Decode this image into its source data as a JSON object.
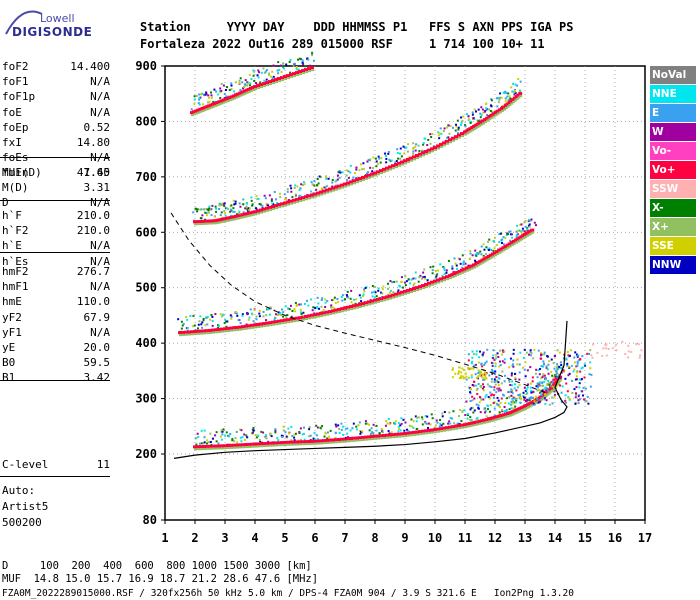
{
  "logo": {
    "top": "Lowell",
    "bottom": "DIGISONDE"
  },
  "header": {
    "line1": "Station     YYYY DAY    DDD HHMMSS P1   FFS S AXN PPS IGA PS",
    "line2": "Fortaleza 2022 Out16 289 015000 RSF     1 714 100 10+ 11"
  },
  "params": {
    "group1": [
      {
        "name": "foF2",
        "value": "14.400"
      },
      {
        "name": "foF1",
        "value": "N/A"
      },
      {
        "name": "foF1p",
        "value": "N/A"
      },
      {
        "name": "foE",
        "value": "N/A"
      },
      {
        "name": "foEp",
        "value": "0.52"
      },
      {
        "name": "fxI",
        "value": "14.80"
      },
      {
        "name": "foEs",
        "value": "N/A"
      },
      {
        "name": "fmin",
        "value": "1.45"
      }
    ],
    "group2": [
      {
        "name": "MUF(D)",
        "value": "47.60"
      },
      {
        "name": "M(D)",
        "value": "3.31"
      },
      {
        "name": "D",
        "value": "N/A"
      }
    ],
    "group3": [
      {
        "name": "h`F",
        "value": "210.0"
      },
      {
        "name": "h`F2",
        "value": "210.0"
      },
      {
        "name": "h`E",
        "value": "N/A"
      },
      {
        "name": "h`Es",
        "value": "N/A"
      }
    ],
    "group4": [
      {
        "name": "hmF2",
        "value": "276.7"
      },
      {
        "name": "hmF1",
        "value": "N/A"
      },
      {
        "name": "hmE",
        "value": "110.0"
      },
      {
        "name": "yF2",
        "value": "67.9"
      },
      {
        "name": "yF1",
        "value": "N/A"
      },
      {
        "name": "yE",
        "value": "20.0"
      },
      {
        "name": "B0",
        "value": "59.5"
      },
      {
        "name": "B1",
        "value": "3.42"
      }
    ],
    "group5": [
      {
        "name": "C-level",
        "value": "11"
      }
    ]
  },
  "auto": {
    "line1": "Auto:",
    "line2": "Artist5",
    "line3": "500200"
  },
  "legend": [
    {
      "label": "NoVal",
      "color": "#808080",
      "text_color": "#ffffff"
    },
    {
      "label": "NNE",
      "color": "#00e5ee",
      "text_color": "#ffffff"
    },
    {
      "label": "E",
      "color": "#3aa0f0",
      "text_color": "#ffffff"
    },
    {
      "label": "W",
      "color": "#a000a0",
      "text_color": "#ffffff"
    },
    {
      "label": "Vo-",
      "color": "#ff40c0",
      "text_color": "#ffffff"
    },
    {
      "label": "Vo+",
      "color": "#ff0040",
      "text_color": "#ffffff"
    },
    {
      "label": "SSW",
      "color": "#ffb0b0",
      "text_color": "#ffffff"
    },
    {
      "label": "X-",
      "color": "#008000",
      "text_color": "#ffffff"
    },
    {
      "label": "X+",
      "color": "#90c060",
      "text_color": "#ffffff"
    },
    {
      "label": "SSE",
      "color": "#d0d000",
      "text_color": "#ffffff"
    },
    {
      "label": "NNW",
      "color": "#0000c0",
      "text_color": "#ffffff"
    }
  ],
  "footer": {
    "line1": "D     100  200  400  600  800 1000 1500 3000 [km]",
    "line2": "MUF  14.8 15.0 15.7 16.9 18.7 21.2 28.6 47.6 [MHz]",
    "line3": "FZA0M_2022289015000.RSF / 320fx256h 50 kHz 5.0 km / DPS-4 FZA0M 904 / 3.9 S 321.6 E   Ion2Png 1.3.20"
  },
  "chart_data": {
    "type": "scatter",
    "x_ticks": [
      "1",
      "2",
      "3",
      "4",
      "5",
      "6",
      "7",
      "8",
      "9",
      "10",
      "11",
      "12",
      "13",
      "14",
      "15",
      "16",
      "17"
    ],
    "y_ticks": [
      "80",
      "200",
      "300",
      "400",
      "500",
      "600",
      "700",
      "800",
      "900"
    ],
    "xlim": [
      1,
      17
    ],
    "ylim": [
      80,
      900
    ],
    "grid": true,
    "traces": [
      {
        "name": "O1",
        "color": "#ff0040",
        "x": [
          2.0,
          3.0,
          4.0,
          5.0,
          6.0,
          7.0,
          8.0,
          9.0,
          10.0,
          11.0,
          11.8,
          12.5,
          13.0,
          13.5,
          13.9,
          14.2
        ],
        "y": [
          212,
          214,
          217,
          220,
          222,
          226,
          231,
          236,
          243,
          252,
          262,
          273,
          285,
          300,
          318,
          340
        ]
      },
      {
        "name": "O2",
        "color": "#ff0040",
        "x": [
          1.5,
          2.5,
          3.5,
          4.5,
          5.5,
          6.5,
          7.5,
          8.5,
          9.5,
          10.5,
          11.3,
          12.0,
          12.7,
          13.3
        ],
        "y": [
          418,
          422,
          428,
          436,
          445,
          456,
          469,
          484,
          501,
          521,
          540,
          562,
          585,
          605
        ]
      },
      {
        "name": "O3",
        "color": "#ff0040",
        "x": [
          2.0,
          2.7,
          3.3,
          4.0,
          5.0,
          6.0,
          7.0,
          8.0,
          9.0,
          10.0,
          11.0,
          11.6,
          12.3,
          12.9
        ],
        "y": [
          618,
          620,
          627,
          636,
          652,
          668,
          686,
          706,
          728,
          752,
          780,
          800,
          825,
          852
        ]
      },
      {
        "name": "O4",
        "color": "#ff0040",
        "x": [
          1.9,
          2.6,
          3.3,
          4.0,
          5.0,
          6.0
        ],
        "y": [
          815,
          830,
          845,
          862,
          880,
          898
        ]
      }
    ],
    "profile_curve": {
      "x": [
        1.3,
        2,
        3,
        4,
        5,
        6,
        7,
        8,
        9,
        10,
        11,
        12,
        13,
        13.5,
        14,
        14.3,
        14.4,
        14.2,
        14.0,
        14.3,
        14.4
      ],
      "y": [
        192,
        198,
        203,
        206,
        208,
        210,
        212,
        214,
        217,
        222,
        228,
        238,
        250,
        256,
        266,
        275,
        285,
        298,
        320,
        360,
        440
      ]
    },
    "dashed_curve": {
      "x": [
        1.2,
        1.8,
        2.5,
        3.2,
        4.0,
        5.0,
        6.0,
        7.0,
        8.0,
        9.0,
        10.0,
        11.0,
        12.0,
        13.0,
        13.7
      ],
      "y": [
        635,
        585,
        540,
        505,
        475,
        450,
        432,
        418,
        405,
        392,
        378,
        362,
        345,
        325,
        310
      ]
    }
  }
}
